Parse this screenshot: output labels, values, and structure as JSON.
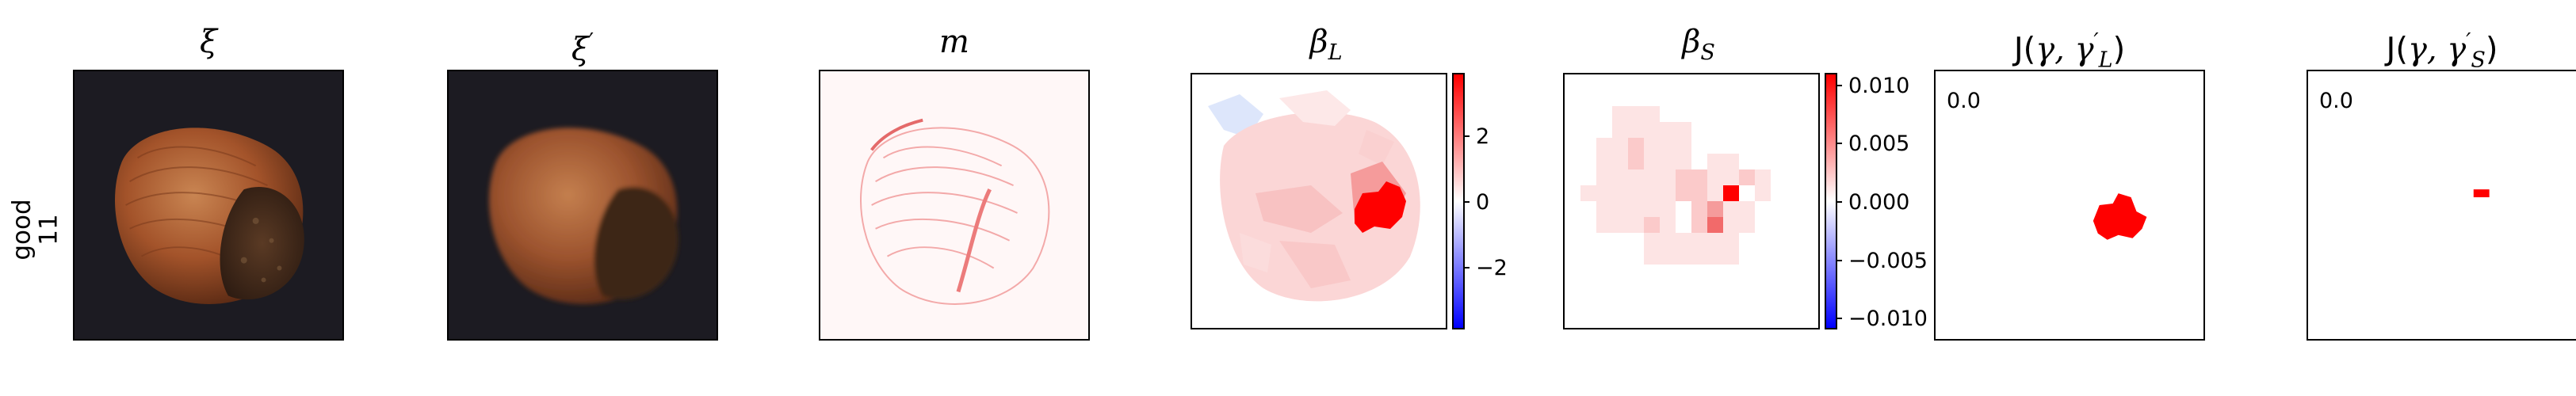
{
  "row_label": {
    "line1": "good",
    "line2": "11"
  },
  "panels": {
    "xi": {
      "title_main": "ξ"
    },
    "xi_prime": {
      "title_main": "ξ",
      "title_sup": "′"
    },
    "m": {
      "title_main": "m"
    },
    "beta_l": {
      "title_main": "β",
      "title_sub": "L"
    },
    "beta_s": {
      "title_main": "β",
      "title_sub": "S"
    },
    "j_l": {
      "title_prefix": "J(",
      "title_gamma": "γ, γ",
      "title_sup": "′",
      "title_sub": "L",
      "title_suffix": ")",
      "corner_value": "0.0"
    },
    "j_s": {
      "title_prefix": "J(",
      "title_gamma": "γ, γ",
      "title_sup": "′",
      "title_sub": "S",
      "title_suffix": ")",
      "corner_value": "0.0"
    }
  },
  "colorbar_l": {
    "ticks": [
      "2",
      "0",
      "−2"
    ]
  },
  "colorbar_s": {
    "ticks": [
      "0.010",
      "0.005",
      "0.000",
      "−0.005",
      "−0.010"
    ]
  },
  "colors": {
    "positive": "#ff0000",
    "negative": "#0000ff",
    "dark_bg": "#1c1b22"
  }
}
